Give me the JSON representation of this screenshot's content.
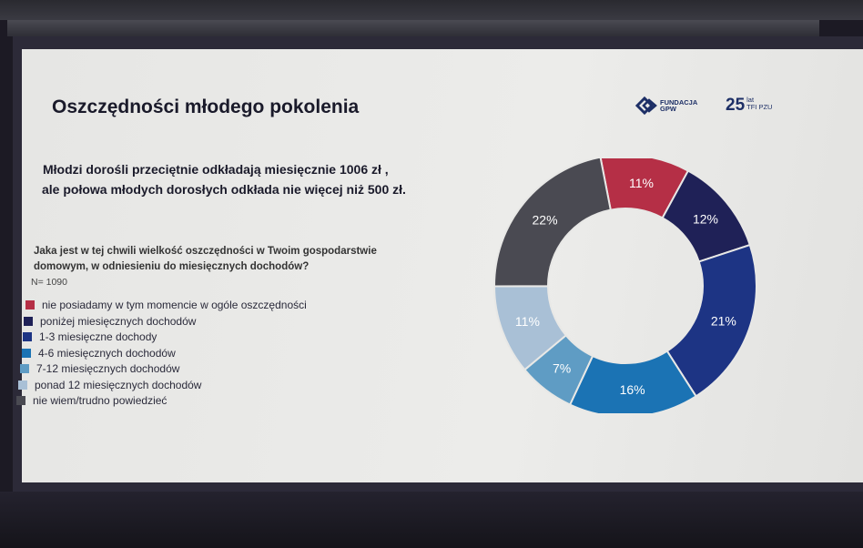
{
  "slide": {
    "title": "Oszczędności młodego pokolenia",
    "headline_line1": "Młodzi dorośli przeciętnie odkładają miesięcznie 1006 zł ,",
    "headline_line2": "ale połowa młodych dorosłych odkłada nie więcej niż 500 zł.",
    "question_line1": "Jaka jest w tej chwili wielkość oszczędności w Twoim gospodarstwie",
    "question_line2": "domowym, w odniesieniu do miesięcznych dochodów?",
    "sample": "N= 1090"
  },
  "logos": {
    "gpw_line1": "FUNDACJA",
    "gpw_line2": "GPW",
    "pzu_number": "25",
    "pzu_lat": "lat",
    "pzu_name": "TFI PZU"
  },
  "chart_data": {
    "type": "pie",
    "donut": true,
    "categories": [
      "nie posiadamy w tym momencie w ogóle oszczędności",
      "poniżej miesięcznych dochodów",
      "1-3 miesięczne dochody",
      "4-6 miesięcznych dochodów",
      "7-12 miesięcznych dochodów",
      "ponad 12 miesięcznych dochodów",
      "nie wiem/trudno powiedzieć"
    ],
    "values": [
      11,
      12,
      21,
      16,
      7,
      11,
      22
    ],
    "labels": [
      "11%",
      "12%",
      "21%",
      "16%",
      "7%",
      "11%",
      "22%"
    ],
    "colors": [
      "#b52f46",
      "#1f2157",
      "#1d3484",
      "#1b73b4",
      "#5f9cc4",
      "#a9c0d6",
      "#4a4a52"
    ],
    "label_colors": [
      "#ffffff",
      "#ffffff",
      "#ffffff",
      "#ffffff",
      "#ffffff",
      "#ffffff",
      "#ffffff"
    ],
    "legend_position": "left"
  }
}
